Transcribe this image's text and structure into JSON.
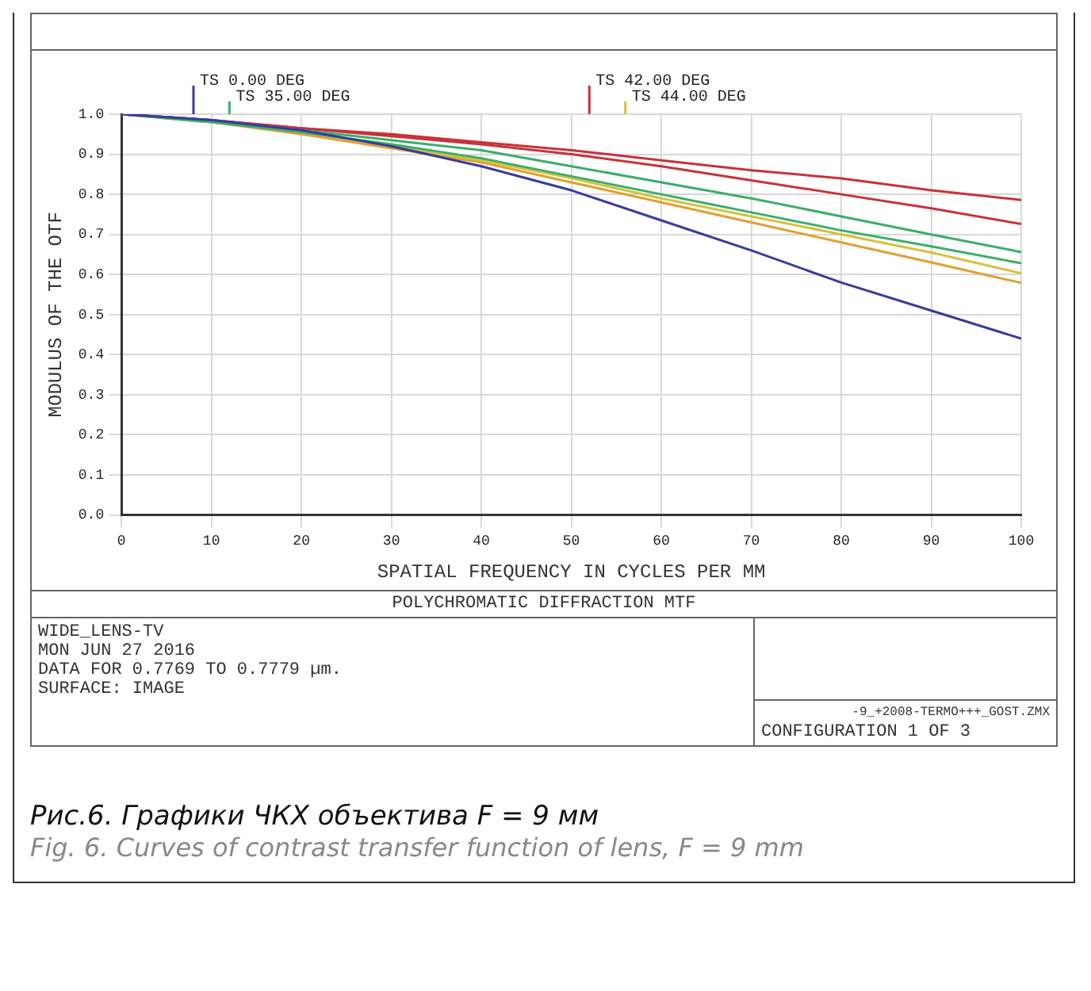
{
  "chart_data": {
    "type": "line",
    "title": "POLYCHROMATIC DIFFRACTION MTF",
    "xlabel": "SPATIAL FREQUENCY IN CYCLES PER MM",
    "ylabel": "MODULUS OF THE OTF",
    "x": [
      0,
      10,
      20,
      30,
      40,
      50,
      60,
      70,
      80,
      90,
      100
    ],
    "series": [
      {
        "name": "TS 0.00 DEG",
        "color": "#3a3aa0",
        "values": [
          1.0,
          0.985,
          0.96,
          0.92,
          0.87,
          0.81,
          0.735,
          0.66,
          0.58,
          0.51,
          0.44
        ]
      },
      {
        "name": "TS 35.00 DEG",
        "color": "#3aae6a",
        "values": [
          1.0,
          0.985,
          0.96,
          0.935,
          0.91,
          0.87,
          0.83,
          0.79,
          0.745,
          0.7,
          0.656
        ]
      },
      {
        "color": "#3aae6a",
        "values": [
          1.0,
          0.98,
          0.955,
          0.925,
          0.89,
          0.845,
          0.8,
          0.755,
          0.71,
          0.67,
          0.628
        ]
      },
      {
        "name": "TS 42.00 DEG",
        "color": "#c8323a",
        "values": [
          1.0,
          0.985,
          0.965,
          0.95,
          0.93,
          0.91,
          0.885,
          0.86,
          0.84,
          0.81,
          0.786
        ]
      },
      {
        "color": "#c8323a",
        "values": [
          1.0,
          0.985,
          0.965,
          0.945,
          0.925,
          0.9,
          0.87,
          0.835,
          0.8,
          0.765,
          0.726
        ]
      },
      {
        "name": "TS 44.00 DEG",
        "color": "#d4c23a",
        "values": [
          1.0,
          0.98,
          0.955,
          0.92,
          0.885,
          0.84,
          0.79,
          0.745,
          0.7,
          0.655,
          0.603
        ]
      },
      {
        "color": "#e0a030",
        "values": [
          1.0,
          0.98,
          0.95,
          0.915,
          0.88,
          0.83,
          0.78,
          0.73,
          0.68,
          0.63,
          0.579
        ]
      }
    ],
    "xlim": [
      0,
      100
    ],
    "xticks": [
      0,
      10,
      20,
      30,
      40,
      50,
      60,
      70,
      80,
      90,
      100
    ],
    "ylim": [
      0,
      1
    ],
    "yticks": [
      {
        "value": 0,
        "label": "0.0"
      },
      0.1,
      0.2,
      0.3,
      0.4,
      0.5,
      0.6,
      0.7,
      0.8,
      0.9,
      {
        "value": 1,
        "label": "1.0"
      }
    ],
    "grid": true,
    "legend": "top",
    "marker": "none",
    "line_style": "solid",
    "annotations": [
      "WIDE_LENS-TV",
      "MON JUN 27 2016",
      "DATA FOR 0.7769 TO 0.7779 µm.",
      "SURFACE: IMAGE",
      "-9_+2008-TERMO+++_GOST.ZMX",
      "CONFIGURATION 1 OF 3",
      "Рис.6. Графики ЧКХ объектива F = 9 мм",
      "Fig. 6. Curves of contrast transfer function of lens, F = 9 mm"
    ]
  }
}
